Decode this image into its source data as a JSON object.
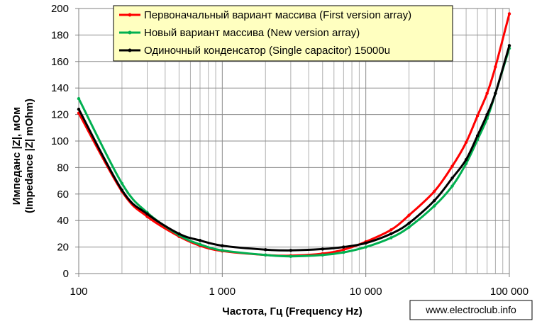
{
  "chart_data": {
    "type": "line",
    "title": "",
    "xlabel": "Частота, Гц (Frequency Hz)",
    "ylabel": [
      "Импеданс |Z|, мОм",
      "(Impedance |Z| mOhm)"
    ],
    "x_scale": "log",
    "xlim": [
      100,
      100000
    ],
    "ylim": [
      0,
      200
    ],
    "x_ticks": [
      100,
      1000,
      10000,
      100000
    ],
    "x_tick_labels": [
      "100",
      "1 000",
      "10 000",
      "100 000"
    ],
    "y_ticks": [
      0,
      20,
      40,
      60,
      80,
      100,
      120,
      140,
      160,
      180,
      200
    ],
    "y_tick_labels": [
      "0",
      "20",
      "40",
      "60",
      "80",
      "100",
      "120",
      "140",
      "160",
      "180",
      "200"
    ],
    "grid": true,
    "legend_position": "top-center",
    "series": [
      {
        "name": "Первоначальный вариант массива (First version array)",
        "color": "#ff0000",
        "points": [
          [
            100,
            121
          ],
          [
            200,
            62
          ],
          [
            300,
            43
          ],
          [
            500,
            28
          ],
          [
            700,
            21
          ],
          [
            1000,
            17
          ],
          [
            2000,
            14
          ],
          [
            3000,
            13.5
          ],
          [
            5000,
            15
          ],
          [
            7000,
            18
          ],
          [
            10000,
            24
          ],
          [
            15000,
            33
          ],
          [
            20000,
            44
          ],
          [
            30000,
            62
          ],
          [
            40000,
            81
          ],
          [
            50000,
            99
          ],
          [
            60000,
            119
          ],
          [
            70000,
            136
          ],
          [
            80000,
            156
          ],
          [
            100000,
            196
          ]
        ]
      },
      {
        "name": "Новый вариант массива (New version array)",
        "color": "#00b050",
        "points": [
          [
            100,
            132
          ],
          [
            200,
            68
          ],
          [
            300,
            46
          ],
          [
            500,
            29
          ],
          [
            700,
            22
          ],
          [
            1000,
            17.5
          ],
          [
            2000,
            14
          ],
          [
            3000,
            13
          ],
          [
            5000,
            14
          ],
          [
            7000,
            16
          ],
          [
            10000,
            20
          ],
          [
            15000,
            27
          ],
          [
            20000,
            35
          ],
          [
            30000,
            51
          ],
          [
            40000,
            66
          ],
          [
            50000,
            83
          ],
          [
            60000,
            101
          ],
          [
            70000,
            117
          ],
          [
            80000,
            136
          ],
          [
            100000,
            170
          ]
        ]
      },
      {
        "name": "Одиночный конденсатор (Single capacitor) 15000u",
        "color": "#000000",
        "points": [
          [
            100,
            124
          ],
          [
            200,
            63
          ],
          [
            300,
            45
          ],
          [
            500,
            30
          ],
          [
            700,
            25
          ],
          [
            1000,
            21
          ],
          [
            2000,
            18
          ],
          [
            3000,
            17.5
          ],
          [
            5000,
            18.5
          ],
          [
            7000,
            20
          ],
          [
            10000,
            23
          ],
          [
            15000,
            30
          ],
          [
            20000,
            38
          ],
          [
            30000,
            55
          ],
          [
            40000,
            72
          ],
          [
            50000,
            86
          ],
          [
            60000,
            104
          ],
          [
            70000,
            120
          ],
          [
            80000,
            136
          ],
          [
            100000,
            172
          ]
        ]
      }
    ]
  },
  "watermark": "www.electroclub.info"
}
